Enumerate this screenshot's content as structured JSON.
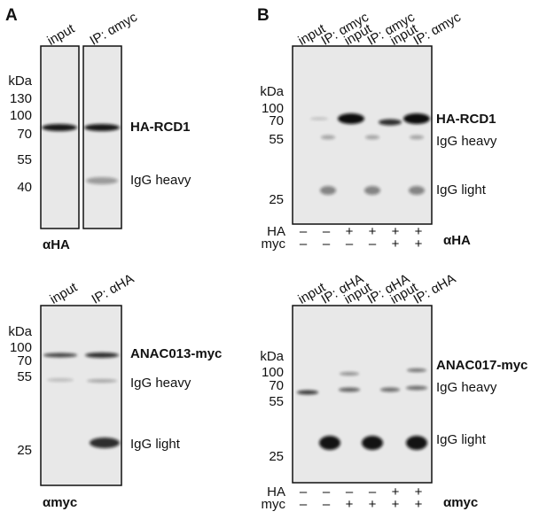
{
  "panel_a": {
    "label": "A",
    "top": {
      "lanes": [
        "input",
        "IP: αmyc"
      ],
      "markers": [
        "kDa",
        "130",
        "100",
        "70",
        "55",
        "40"
      ],
      "bands": [
        "HA-RCD1",
        "IgG heavy"
      ],
      "antibody": "αHA"
    },
    "bottom": {
      "lanes": [
        "input",
        "IP: αHA"
      ],
      "markers": [
        "kDa",
        "100",
        "70",
        "55",
        "25"
      ],
      "bands": [
        "ANAC013-myc",
        "IgG heavy",
        "IgG light"
      ],
      "antibody": "αmyc"
    }
  },
  "panel_b": {
    "label": "B",
    "top": {
      "lanes": [
        "input",
        "IP: αmyc",
        "input",
        "IP: αmyc",
        "input",
        "IP: αmyc"
      ],
      "markers": [
        "kDa",
        "100",
        "70",
        "55",
        "25"
      ],
      "bands": [
        "HA-RCD1",
        "IgG heavy",
        "IgG light"
      ],
      "conditions": [
        {
          "name": "HA",
          "signs": [
            "–",
            "–",
            "+",
            "+",
            "+",
            "+"
          ]
        },
        {
          "name": "myc",
          "signs": [
            "–",
            "–",
            "–",
            "–",
            "+",
            "+"
          ]
        }
      ],
      "antibody": "αHA"
    },
    "bottom": {
      "lanes": [
        "input",
        "IP: αHA",
        "input",
        "IP: αHA",
        "input",
        "IP: αHA"
      ],
      "markers": [
        "kDa",
        "100",
        "70",
        "55",
        "25"
      ],
      "bands": [
        "ANAC017-myc",
        "IgG heavy",
        "IgG light"
      ],
      "conditions": [
        {
          "name": "HA",
          "signs": [
            "–",
            "–",
            "–",
            "–",
            "+",
            "+"
          ]
        },
        {
          "name": "myc",
          "signs": [
            "–",
            "–",
            "+",
            "+",
            "+",
            "+"
          ]
        }
      ],
      "antibody": "αmyc"
    }
  }
}
